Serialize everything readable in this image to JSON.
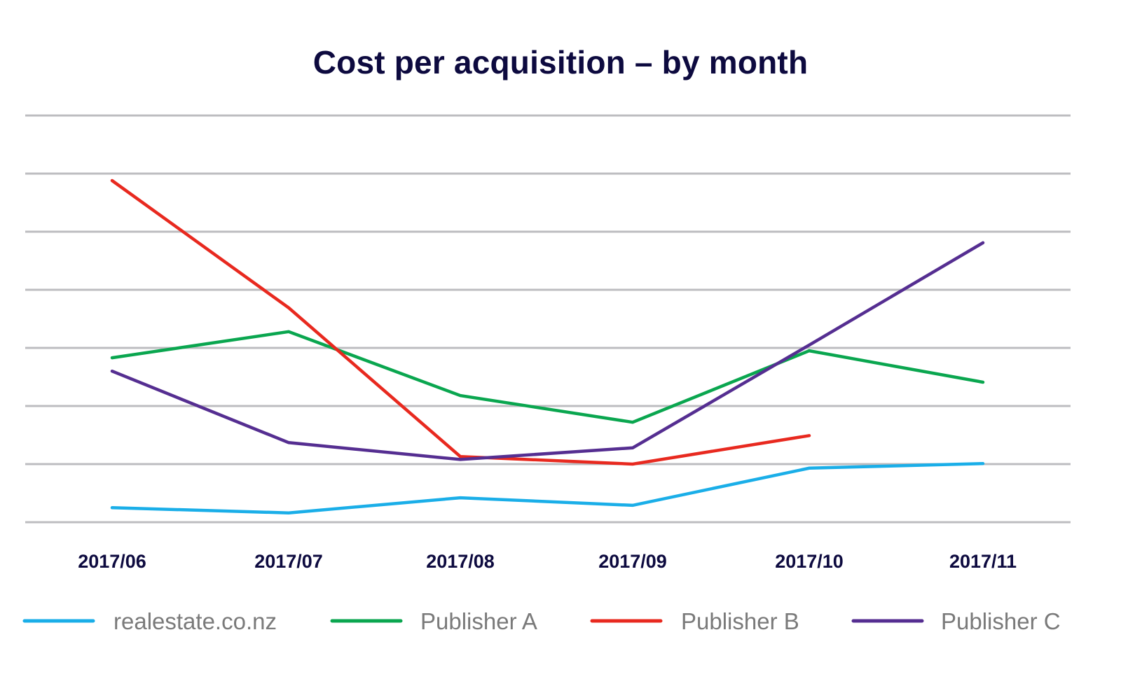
{
  "chart_data": {
    "type": "line",
    "title": "Cost per acquisition – by month",
    "xlabel": "",
    "ylabel": "",
    "categories": [
      "2017/06",
      "2017/07",
      "2017/08",
      "2017/09",
      "2017/10",
      "2017/11"
    ],
    "ylim": [
      0,
      7
    ],
    "y_gridlines": [
      0,
      1,
      2,
      3,
      4,
      5,
      6,
      7
    ],
    "y_tick_labels_shown": false,
    "grid": true,
    "legend_position": "bottom",
    "series": [
      {
        "name": "realestate.co.nz",
        "color": "#1aaee8",
        "values": [
          0.25,
          0.16,
          0.42,
          0.29,
          0.93,
          1.01
        ]
      },
      {
        "name": "Publisher A",
        "color": "#0aa64f",
        "values": [
          2.83,
          3.28,
          2.18,
          1.72,
          2.95,
          2.41
        ]
      },
      {
        "name": "Publisher B",
        "color": "#e8291f",
        "values": [
          5.88,
          3.69,
          1.13,
          1.0,
          1.49,
          null
        ]
      },
      {
        "name": "Publisher C",
        "color": "#552e91",
        "values": [
          2.6,
          1.37,
          1.08,
          1.28,
          3.05,
          4.81
        ]
      }
    ],
    "gridline_color": "#bdbdc0",
    "text_color": "#0d0a3f",
    "legend_text_color": "#7a7a7a"
  }
}
